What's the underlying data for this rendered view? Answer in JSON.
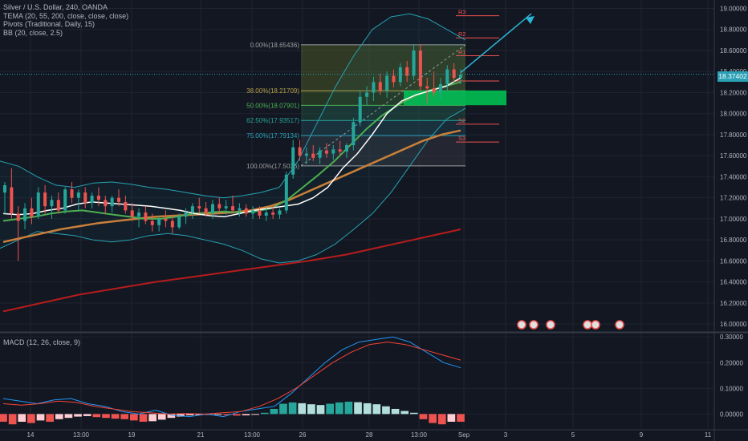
{
  "legend": {
    "symbol": "Silver / U.S. Dollar, 240, OANDA",
    "tema": "TEMA (20, 55, 200, close, close, close)",
    "pivots": "Pivots (Traditional, Daily, 15)",
    "bb": "BB (20, close, 2.5)"
  },
  "macd_label": "MACD (12, 26, close, 9)",
  "price_tag": "18.37402",
  "colors": {
    "background": "#131722",
    "grid": "#1f2431",
    "text": "#b2b5be",
    "candle_up": "#26a69a",
    "candle_down": "#ef5350",
    "tema_fast": "#ffffff",
    "tema_mid": "#4caf50",
    "tema_slow_orange": "#c87f3a",
    "tema_200": "#b71c1c",
    "bb": "#26a2b2",
    "fib_zone": "#5a6b2e",
    "green_zone": "#00c853",
    "arrow": "#2bb5d6",
    "pivot": "#ef5350",
    "macd_line": "#2196f3",
    "signal_line": "#f44336"
  },
  "chart_data": [
    {
      "type": "candlestick",
      "y_axis_ticks": [
        "19.00000",
        "18.80000",
        "18.60000",
        "18.40000",
        "18.20000",
        "18.00000",
        "17.80000",
        "17.60000",
        "17.40000",
        "17.20000",
        "17.00000",
        "16.80000",
        "16.60000",
        "16.40000",
        "16.20000",
        "16.00000"
      ],
      "ylim": [
        15.94,
        19.08
      ],
      "x_axis_ticks": [
        "14",
        "13:00",
        "19",
        "21",
        "13:00",
        "26",
        "28",
        "13:00",
        "Sep",
        "3",
        "5",
        "9",
        "11"
      ],
      "last_price": 18.37402,
      "fibonacci": [
        {
          "label": "0.00%(18.65436)",
          "value": 18.65436
        },
        {
          "label": "38.00%(18.21709)",
          "value": 18.21709
        },
        {
          "label": "50.00%(18.07901)",
          "value": 18.07901
        },
        {
          "label": "62.50%(17.93517)",
          "value": 17.93517
        },
        {
          "label": "75.00%(17.79134)",
          "value": 17.79134
        },
        {
          "label": "100.00%(17.5036)",
          "value": 17.5036
        }
      ],
      "pivots": [
        {
          "label": "R3",
          "value": 18.93
        },
        {
          "label": "R2",
          "value": 18.72
        },
        {
          "label": "R1",
          "value": 18.55
        },
        {
          "label": "",
          "value": 18.31
        },
        {
          "label": "S2",
          "value": 17.9
        },
        {
          "label": "S3",
          "value": 17.73
        }
      ],
      "green_zone": [
        18.08,
        18.22
      ],
      "candles": [
        [
          17.25,
          17.35,
          17.05,
          17.32
        ],
        [
          17.3,
          17.48,
          17.0,
          17.05
        ],
        [
          17.05,
          17.12,
          16.6,
          16.98
        ],
        [
          16.98,
          17.15,
          16.9,
          17.1
        ],
        [
          17.1,
          17.2,
          16.95,
          17.02
        ],
        [
          17.02,
          17.3,
          17.0,
          17.25
        ],
        [
          17.25,
          17.32,
          17.05,
          17.12
        ],
        [
          17.12,
          17.22,
          17.0,
          17.18
        ],
        [
          17.18,
          17.25,
          17.05,
          17.08
        ],
        [
          17.08,
          17.3,
          17.05,
          17.28
        ],
        [
          17.28,
          17.35,
          17.15,
          17.2
        ],
        [
          17.2,
          17.28,
          17.08,
          17.25
        ],
        [
          17.25,
          17.3,
          17.1,
          17.15
        ],
        [
          17.15,
          17.25,
          17.1,
          17.22
        ],
        [
          17.22,
          17.3,
          17.12,
          17.18
        ],
        [
          17.18,
          17.22,
          17.05,
          17.12
        ],
        [
          17.12,
          17.22,
          17.06,
          17.2
        ],
        [
          17.2,
          17.28,
          17.12,
          17.16
        ],
        [
          17.16,
          17.22,
          17.05,
          17.08
        ],
        [
          17.08,
          17.15,
          16.98,
          17.02
        ],
        [
          17.02,
          17.1,
          16.92,
          17.06
        ],
        [
          17.06,
          17.12,
          16.95,
          16.98
        ],
        [
          16.98,
          17.05,
          16.88,
          16.94
        ],
        [
          16.94,
          17.02,
          16.88,
          17.0
        ],
        [
          17.0,
          17.08,
          16.92,
          16.98
        ],
        [
          16.98,
          17.04,
          16.86,
          16.92
        ],
        [
          16.92,
          17.05,
          16.9,
          17.02
        ],
        [
          17.02,
          17.1,
          16.95,
          17.06
        ],
        [
          17.06,
          17.15,
          17.0,
          17.12
        ],
        [
          17.12,
          17.2,
          17.05,
          17.1
        ],
        [
          17.1,
          17.16,
          17.02,
          17.05
        ],
        [
          17.05,
          17.18,
          17.0,
          17.14
        ],
        [
          17.14,
          17.2,
          17.06,
          17.1
        ],
        [
          17.1,
          17.18,
          17.04,
          17.12
        ],
        [
          17.12,
          17.22,
          17.05,
          17.08
        ],
        [
          17.08,
          17.15,
          17.02,
          17.1
        ],
        [
          17.1,
          17.14,
          17.02,
          17.05
        ],
        [
          17.05,
          17.12,
          17.0,
          17.08
        ],
        [
          17.08,
          17.12,
          17.0,
          17.03
        ],
        [
          17.03,
          17.1,
          16.98,
          17.06
        ],
        [
          17.06,
          17.12,
          17.0,
          17.04
        ],
        [
          17.04,
          17.1,
          17.0,
          17.08
        ],
        [
          17.08,
          17.45,
          17.05,
          17.42
        ],
        [
          17.42,
          17.75,
          17.38,
          17.68
        ],
        [
          17.68,
          17.75,
          17.55,
          17.6
        ],
        [
          17.6,
          17.68,
          17.52,
          17.62
        ],
        [
          17.62,
          17.7,
          17.55,
          17.58
        ],
        [
          17.58,
          17.68,
          17.52,
          17.65
        ],
        [
          17.65,
          17.72,
          17.58,
          17.62
        ],
        [
          17.62,
          17.7,
          17.56,
          17.66
        ],
        [
          17.66,
          17.74,
          17.6,
          17.64
        ],
        [
          17.64,
          17.72,
          17.58,
          17.7
        ],
        [
          17.7,
          17.96,
          17.65,
          17.92
        ],
        [
          17.92,
          18.22,
          17.88,
          18.16
        ],
        [
          18.16,
          18.26,
          18.08,
          18.2
        ],
        [
          18.2,
          18.35,
          18.12,
          18.3
        ],
        [
          18.3,
          18.38,
          18.18,
          18.22
        ],
        [
          18.22,
          18.4,
          18.15,
          18.36
        ],
        [
          18.36,
          18.42,
          18.25,
          18.3
        ],
        [
          18.3,
          18.48,
          18.26,
          18.44
        ],
        [
          18.44,
          18.5,
          18.3,
          18.36
        ],
        [
          18.36,
          18.66,
          18.32,
          18.6
        ],
        [
          18.6,
          18.66,
          18.22,
          18.26
        ],
        [
          18.26,
          18.34,
          18.1,
          18.24
        ],
        [
          18.24,
          18.4,
          18.16,
          18.2
        ],
        [
          18.2,
          18.34,
          18.14,
          18.28
        ],
        [
          18.28,
          18.46,
          18.22,
          18.42
        ],
        [
          18.42,
          18.48,
          18.3,
          18.34
        ],
        [
          18.34,
          18.42,
          18.28,
          18.37
        ]
      ],
      "tema_fast": [
        17.05,
        17.04,
        17.05,
        17.08,
        17.1,
        17.14,
        17.16,
        17.15,
        17.14,
        17.13,
        17.12,
        17.1,
        17.08,
        17.05,
        17.03,
        17.02,
        17.05,
        17.08,
        17.1,
        17.12,
        17.14,
        17.2,
        17.3,
        17.48,
        17.62,
        17.8,
        18.0,
        18.12,
        18.18,
        18.22,
        18.26,
        18.34
      ],
      "tema_mid": [
        16.98,
        17.0,
        17.02,
        17.05,
        17.07,
        17.08,
        17.06,
        17.04,
        17.02,
        17.0,
        17.0,
        17.02,
        17.05,
        17.06,
        17.07,
        17.06,
        17.07,
        17.1,
        17.18,
        17.3,
        17.42,
        17.55,
        17.7,
        17.85,
        17.98,
        18.08,
        18.16,
        18.22,
        18.26,
        18.3
      ],
      "tema_slow": [
        16.78,
        16.82,
        16.86,
        16.9,
        16.93,
        16.96,
        16.98,
        17.0,
        17.02,
        17.03,
        17.04,
        17.05,
        17.06,
        17.08,
        17.12,
        17.18,
        17.26,
        17.34,
        17.42,
        17.5,
        17.58,
        17.66,
        17.74,
        17.8,
        17.84
      ],
      "tema_200": [
        16.12,
        16.2,
        16.28,
        16.34,
        16.4,
        16.45,
        16.5,
        16.55,
        16.6,
        16.66,
        16.74,
        16.82,
        16.9
      ],
      "bb_upper": [
        17.55,
        17.5,
        17.4,
        17.32,
        17.3,
        17.34,
        17.35,
        17.33,
        17.3,
        17.28,
        17.25,
        17.22,
        17.2,
        17.22,
        17.25,
        17.3,
        17.55,
        17.9,
        18.25,
        18.55,
        18.8,
        18.92,
        18.95,
        18.9,
        18.8,
        18.7
      ],
      "bb_lower": [
        16.72,
        16.8,
        16.88,
        16.86,
        16.84,
        16.8,
        16.78,
        16.8,
        16.84,
        16.86,
        16.84,
        16.8,
        16.76,
        16.7,
        16.62,
        16.58,
        16.6,
        16.66,
        16.76,
        16.9,
        17.05,
        17.25,
        17.5,
        17.75,
        17.95,
        18.05
      ]
    },
    {
      "type": "macd",
      "title": "MACD (12, 26, close, 9)",
      "y_axis_ticks": [
        "0.30000",
        "0.20000",
        "0.10000",
        "0.00000"
      ],
      "ylim": [
        -0.055,
        0.31
      ],
      "histogram": [
        -0.03,
        -0.04,
        -0.03,
        -0.035,
        -0.025,
        -0.03,
        -0.02,
        -0.015,
        -0.01,
        -0.008,
        -0.012,
        -0.015,
        -0.018,
        -0.02,
        -0.025,
        -0.03,
        -0.028,
        -0.022,
        -0.015,
        -0.01,
        -0.005,
        -0.004,
        -0.003,
        -0.002,
        -0.004,
        -0.006,
        -0.005,
        -0.002,
        0.005,
        0.02,
        0.04,
        0.045,
        0.042,
        0.038,
        0.035,
        0.04,
        0.045,
        0.048,
        0.046,
        0.042,
        0.038,
        0.03,
        0.02,
        0.012,
        0.005,
        -0.02,
        -0.035,
        -0.04,
        -0.03,
        -0.03
      ],
      "macd_line": [
        0.06,
        0.05,
        0.04,
        0.055,
        0.06,
        0.04,
        0.03,
        0.01,
        0.0,
        0.015,
        -0.005,
        -0.01,
        0.0,
        -0.01,
        0.01,
        0.02,
        0.03,
        0.08,
        0.14,
        0.2,
        0.25,
        0.28,
        0.29,
        0.3,
        0.28,
        0.24,
        0.2,
        0.18
      ],
      "signal_line": [
        0.04,
        0.035,
        0.04,
        0.05,
        0.045,
        0.03,
        0.02,
        0.01,
        0.005,
        0.0,
        0.002,
        0.0,
        0.005,
        0.01,
        0.03,
        0.06,
        0.1,
        0.15,
        0.2,
        0.24,
        0.27,
        0.28,
        0.27,
        0.25,
        0.23,
        0.21
      ]
    }
  ]
}
